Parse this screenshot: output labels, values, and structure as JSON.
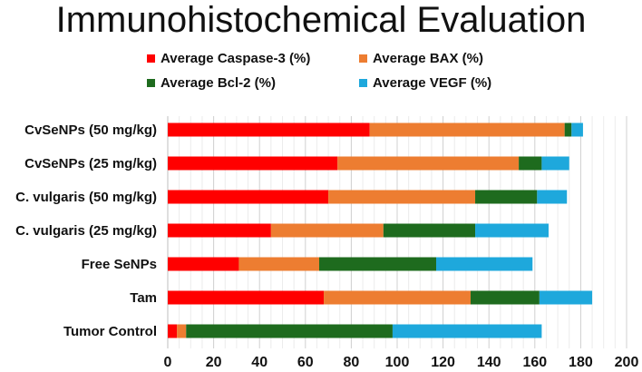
{
  "chart_data": {
    "type": "bar",
    "orientation": "horizontal",
    "stacked": true,
    "title": "Immunohistochemical Evaluation",
    "xlabel": "",
    "ylabel": "",
    "xlim": [
      0,
      200
    ],
    "xticks": [
      "0",
      "20",
      "40",
      "60",
      "80",
      "100",
      "120",
      "140",
      "160",
      "180",
      "200"
    ],
    "grid": true,
    "legend_position": "top",
    "categories": [
      "CvSeNPs (50 mg/kg)",
      "CvSeNPs  (25 mg/kg)",
      "C. vulgaris (50 mg/kg)",
      "C. vulgaris (25 mg/kg)",
      "Free SeNPs",
      "Tam",
      "Tumor Control"
    ],
    "series": [
      {
        "name": "Average Caspase-3 (%)",
        "color": "#ff0000",
        "values": [
          88,
          74,
          70,
          45,
          31,
          68,
          4
        ]
      },
      {
        "name": "Average BAX (%)",
        "color": "#ed7d31",
        "values": [
          85,
          79,
          64,
          49,
          35,
          64,
          4
        ]
      },
      {
        "name": "Average Bcl-2 (%)",
        "color": "#1e6b1e",
        "values": [
          3,
          10,
          27,
          40,
          51,
          30,
          90
        ]
      },
      {
        "name": "Average VEGF (%)",
        "color": "#1ea8dc",
        "values": [
          5,
          12,
          13,
          32,
          42,
          23,
          65
        ]
      }
    ]
  }
}
